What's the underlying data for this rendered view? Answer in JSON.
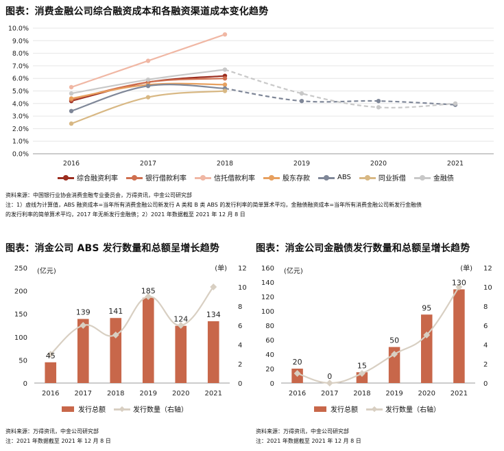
{
  "chart_data": [
    {
      "type": "line",
      "title": "图表：消费金融公司综合融资成本和各融资渠道成本变化趋势",
      "categories": [
        "2016",
        "2017",
        "2018",
        "2019",
        "2020",
        "2021"
      ],
      "ylim": [
        0,
        10
      ],
      "yticks": [
        "0.0%",
        "1.0%",
        "2.0%",
        "3.0%",
        "4.0%",
        "5.0%",
        "6.0%",
        "7.0%",
        "8.0%",
        "9.0%",
        "10.0%"
      ],
      "series": [
        {
          "name": "综合融资利率",
          "color": "#9b2d1f",
          "values": [
            4.2,
            5.7,
            6.2,
            null,
            null,
            null
          ]
        },
        {
          "name": "银行借款利率",
          "color": "#cf6f4f",
          "values": [
            4.3,
            5.7,
            6.0,
            null,
            null,
            null
          ]
        },
        {
          "name": "信托借款利率",
          "color": "#f0b7a4",
          "values": [
            5.3,
            7.4,
            9.5,
            null,
            null,
            null
          ]
        },
        {
          "name": "股东存款",
          "color": "#e7a05f",
          "values": [
            4.4,
            5.5,
            5.5,
            null,
            null,
            null
          ]
        },
        {
          "name": "ABS",
          "color": "#7f8798",
          "values": [
            3.4,
            5.4,
            5.2,
            4.2,
            4.2,
            3.9
          ],
          "dashed_from": 2
        },
        {
          "name": "同业拆借",
          "color": "#d8b884",
          "values": [
            2.4,
            4.5,
            5.0,
            null,
            null,
            null
          ]
        },
        {
          "name": "金融债",
          "color": "#c8c8c8",
          "values": [
            4.8,
            5.9,
            6.7,
            4.8,
            3.7,
            4.0
          ],
          "dashed_from": 2
        }
      ],
      "grid": true,
      "legend": "bottom"
    },
    {
      "type": "bar",
      "title": "图表：消金公司 ABS 发行数量和总额呈增长趋势",
      "categories": [
        "2016",
        "2017",
        "2018",
        "2019",
        "2020",
        "2021"
      ],
      "series": [
        {
          "name": "发行总额",
          "axis": "left",
          "color": "#c8674a",
          "values": [
            45,
            139,
            141,
            185,
            124,
            134
          ]
        },
        {
          "name": "发行数量（右轴）",
          "axis": "right",
          "type": "line",
          "color": "#d8cfc2",
          "values": [
            3,
            6,
            5,
            9,
            6,
            10
          ]
        }
      ],
      "ylim": [
        0,
        250
      ],
      "ylim_right": [
        0,
        12
      ],
      "yticks": [
        "0",
        "50",
        "100",
        "150",
        "200",
        "250"
      ],
      "yticks_right": [
        "0",
        "2",
        "4",
        "6",
        "8",
        "10",
        "12"
      ],
      "ylabel": "(亿元)",
      "ylabel_right": "(单)",
      "data_labels": [
        "45",
        "139",
        "141",
        "185",
        "124",
        "134"
      ],
      "legend": "bottom"
    },
    {
      "type": "bar",
      "title": "图表：消金公司金融债发行数量和总额呈增长趋势",
      "categories": [
        "2016",
        "2017",
        "2018",
        "2019",
        "2020",
        "2021"
      ],
      "series": [
        {
          "name": "发行总额",
          "axis": "left",
          "color": "#c8674a",
          "values": [
            20,
            0,
            15,
            50,
            95,
            130
          ]
        },
        {
          "name": "发行数量（右轴）",
          "axis": "right",
          "type": "line",
          "color": "#d8cfc2",
          "values": [
            1,
            0,
            1,
            3,
            5,
            10
          ]
        }
      ],
      "ylim": [
        0,
        160
      ],
      "ylim_right": [
        0,
        12
      ],
      "yticks": [
        "0",
        "20",
        "40",
        "60",
        "80",
        "100",
        "120",
        "140",
        "160"
      ],
      "yticks_right": [
        "0",
        "2",
        "4",
        "6",
        "8",
        "10",
        "12"
      ],
      "ylabel": "(亿元)",
      "ylabel_right": "(单)",
      "data_labels": [
        "20",
        "0",
        "15",
        "50",
        "95",
        "130"
      ],
      "legend": "bottom"
    }
  ],
  "notes": {
    "top_source": "资料来源：中国银行业协会消费金融专业委员会，万得资讯，中金公司研究部",
    "top_note_1": "注：1）虚线为计算值，ABS 融资成本=当年所有消费金融公司新发行 A 类和 B 类 ABS 的发行利率的简单算术平均，金融债融资成本=当年所有消费金融公司新发行金融债",
    "top_note_2": "的发行利率的简单算术平均，2017 年无新发行金融债；2）2021 年数据截至 2021 年 12 月 8 日",
    "left_source": "资料来源：万得资讯，中金公司研究部",
    "left_note": "注：2021 年数据截至 2021 年 12 月 8 日",
    "right_source": "资料来源：万得资讯，中金公司研究部",
    "right_note": "注：2021 年数据截至 2021 年 12 月 8 日"
  }
}
